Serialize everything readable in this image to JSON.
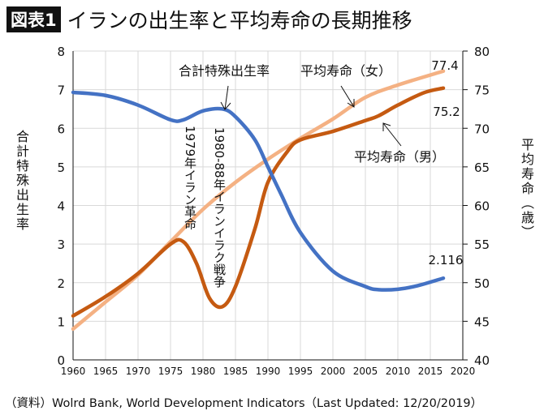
{
  "title": {
    "badge": "図表1",
    "text": "イランの出生率と平均寿命の長期推移"
  },
  "source": "（資料）Wolrd Bank, World Development Indicators（Last Updated: 12/20/2019）",
  "chart_data": {
    "type": "line",
    "title": "イランの出生率と平均寿命の長期推移",
    "xlabel": "",
    "ylabel": "合計特殊出生率",
    "y2label": "平均寿命（歳）",
    "xlim": [
      1960,
      2020
    ],
    "ylim": [
      0,
      8
    ],
    "y2lim": [
      40,
      80
    ],
    "grid": true,
    "xticks": [
      "1960",
      "1965",
      "1970",
      "1975",
      "1980",
      "1985",
      "1990",
      "1995",
      "2000",
      "2005",
      "2010",
      "2015",
      "2020"
    ],
    "yticks": [
      "0",
      "1",
      "2",
      "3",
      "4",
      "5",
      "6",
      "7",
      "8"
    ],
    "y2ticks": [
      "40",
      "45",
      "50",
      "55",
      "60",
      "65",
      "70",
      "75",
      "80"
    ],
    "series": [
      {
        "name": "合計特殊出生率",
        "axis": "left",
        "color": "#4472C4",
        "x": [
          1960,
          1965,
          1970,
          1975,
          1977,
          1980,
          1983,
          1985,
          1988,
          1990,
          1992,
          1995,
          2000,
          2005,
          2007,
          2010,
          2013,
          2017
        ],
        "y": [
          6.93,
          6.85,
          6.6,
          6.22,
          6.22,
          6.45,
          6.5,
          6.3,
          5.7,
          5.0,
          4.3,
          3.3,
          2.3,
          1.9,
          1.82,
          1.83,
          1.92,
          2.116
        ],
        "end_label": "2.116"
      },
      {
        "name": "平均寿命（女）",
        "axis": "right",
        "color": "#F4B183",
        "x": [
          1960,
          1965,
          1970,
          1975,
          1980,
          1985,
          1990,
          1995,
          2000,
          2005,
          2010,
          2017
        ],
        "y": [
          44.0,
          47.5,
          51.0,
          55.3,
          59.5,
          63.0,
          66.0,
          68.7,
          71.2,
          74.0,
          75.6,
          77.4
        ],
        "end_label": "77.4"
      },
      {
        "name": "平均寿命（男）",
        "axis": "right",
        "color": "#C55A11",
        "x": [
          1960,
          1965,
          1970,
          1975,
          1977,
          1979,
          1981,
          1983,
          1985,
          1988,
          1990,
          1993,
          1995,
          2000,
          2005,
          2007,
          2010,
          2014,
          2017
        ],
        "y": [
          45.7,
          48.2,
          51.2,
          55.0,
          55.3,
          52.5,
          48.0,
          46.9,
          49.5,
          57.0,
          63.0,
          67.0,
          68.5,
          69.6,
          71.0,
          71.6,
          73.0,
          74.6,
          75.2
        ],
        "end_label": "75.2"
      }
    ],
    "annotations": [
      {
        "text": "合計特殊出生率"
      },
      {
        "text": "平均寿命（女）"
      },
      {
        "text": "平均寿命（男）"
      },
      {
        "text": "1979年イラン革命"
      },
      {
        "text": "1980-88年イランイラク戦争"
      }
    ]
  }
}
